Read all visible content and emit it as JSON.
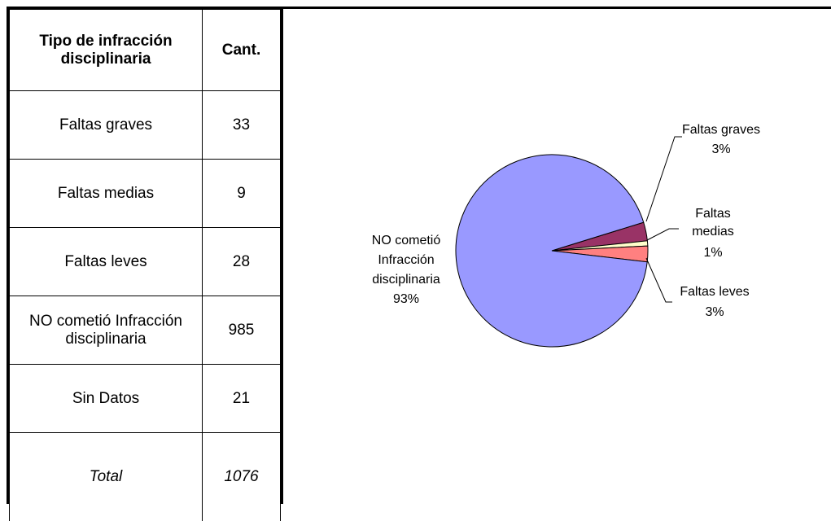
{
  "table": {
    "header": {
      "type": "Tipo de infracción disciplinaria",
      "count": "Cant."
    },
    "rows": [
      {
        "label": "Faltas graves",
        "value": "33"
      },
      {
        "label": "Faltas medias",
        "value": "9"
      },
      {
        "label": "Faltas leves",
        "value": "28"
      },
      {
        "label": "NO cometió Infracción disciplinaria",
        "value": "985"
      },
      {
        "label": "Sin Datos",
        "value": "21"
      }
    ],
    "total": {
      "label": "Total",
      "value": "1076"
    }
  },
  "chart_data": {
    "type": "pie",
    "slices": [
      {
        "name": "Faltas graves",
        "value": 33,
        "percent_label": "3%",
        "color": "#993366"
      },
      {
        "name": "Faltas medias",
        "value": 9,
        "percent_label": "1%",
        "color": "#ffffcc"
      },
      {
        "name": "Faltas leves",
        "value": 28,
        "percent_label": "3%",
        "color": "#ff8080"
      },
      {
        "name": "NO cometió Infracción disciplinaria",
        "value": 985,
        "percent_label": "93%",
        "color": "#9999ff"
      }
    ],
    "labels": {
      "graves": [
        "Faltas graves",
        "3%"
      ],
      "medias": [
        "Faltas",
        "medias",
        "1%"
      ],
      "leves": [
        "Faltas leves",
        "3%"
      ],
      "no": [
        "NO cometió",
        "Infracción",
        "disciplinaria",
        "93%"
      ]
    }
  }
}
